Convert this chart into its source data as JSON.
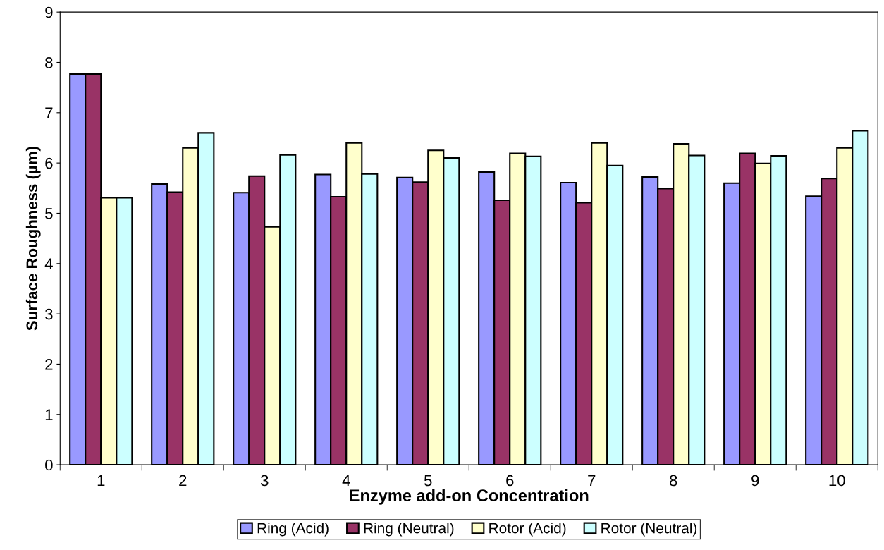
{
  "chart_data": {
    "type": "bar",
    "xlabel": "Enzyme add-on Concentration",
    "ylabel": "Surface Roughness (µm)",
    "categories": [
      "1",
      "2",
      "3",
      "4",
      "5",
      "6",
      "7",
      "8",
      "9",
      "10"
    ],
    "series": [
      {
        "name": "Ring (Acid)",
        "color": "#9999ff",
        "values": [
          7.77,
          5.58,
          5.41,
          5.77,
          5.71,
          5.82,
          5.61,
          5.72,
          5.6,
          5.34
        ]
      },
      {
        "name": "Ring (Neutral)",
        "color": "#993366",
        "values": [
          7.77,
          5.42,
          5.74,
          5.33,
          5.62,
          5.26,
          5.21,
          5.49,
          6.19,
          5.69
        ]
      },
      {
        "name": "Rotor (Acid)",
        "color": "#ffffcc",
        "values": [
          5.31,
          6.3,
          4.73,
          6.4,
          6.25,
          6.19,
          6.4,
          6.38,
          5.99,
          6.3
        ]
      },
      {
        "name": "Rotor (Neutral)",
        "color": "#ccffff",
        "values": [
          5.31,
          6.6,
          6.16,
          5.78,
          6.1,
          6.13,
          5.95,
          6.15,
          6.14,
          6.64
        ]
      }
    ],
    "ylim": [
      0,
      9
    ],
    "yticks": [
      0,
      1,
      2,
      3,
      4,
      5,
      6,
      7,
      8,
      9
    ],
    "grid": false,
    "legend": "bottom"
  }
}
